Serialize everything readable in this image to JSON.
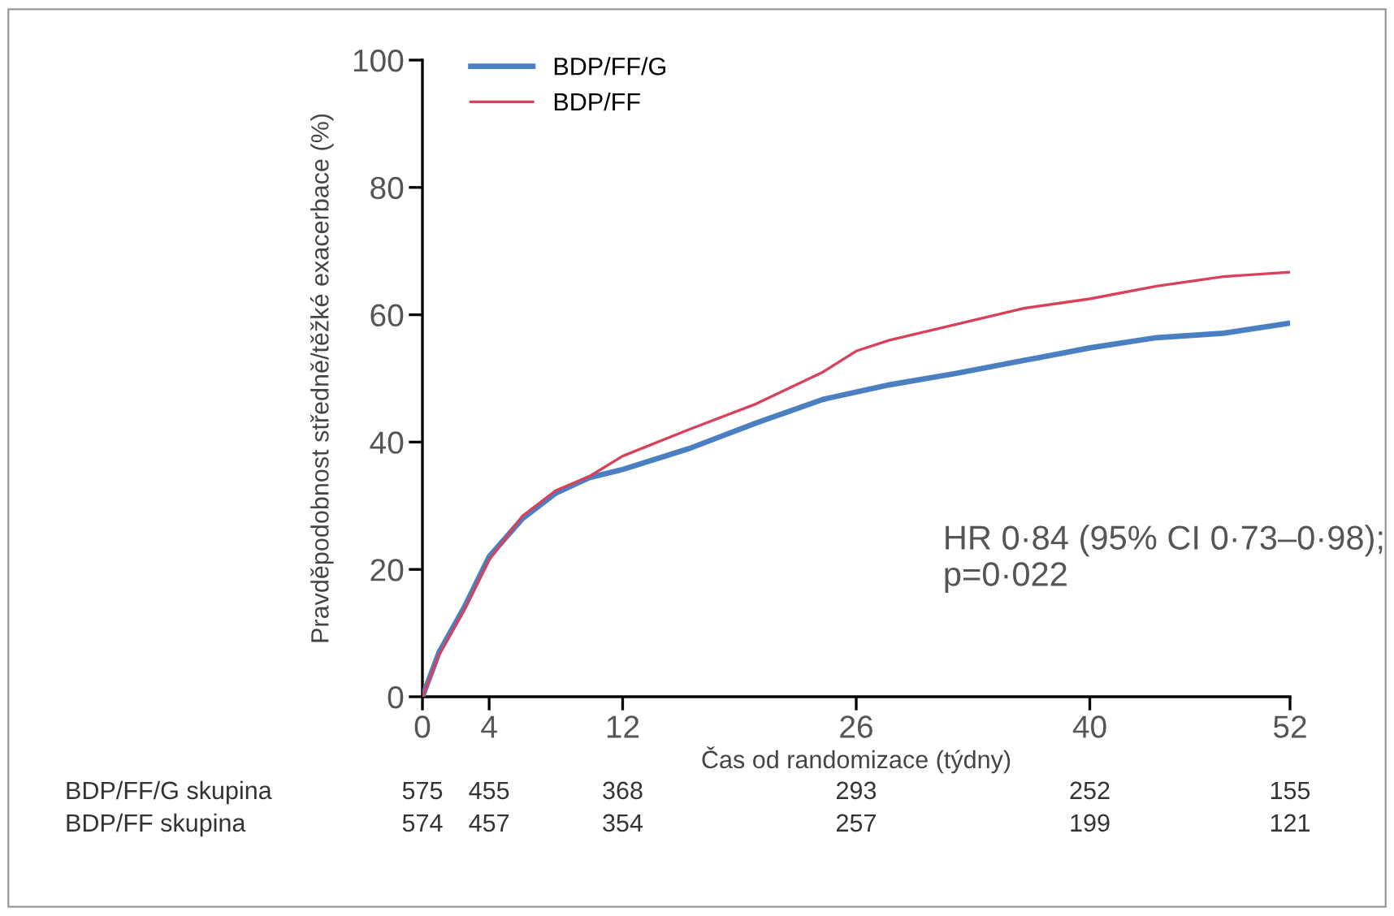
{
  "chart_data": {
    "type": "line",
    "xlabel": "Čas od randomizace (týdny)",
    "ylabel": "Pravděpodobnost středně/těžké exacerbace (%)",
    "xlim": [
      0,
      52
    ],
    "xticks": [
      0,
      4,
      12,
      26,
      40,
      52
    ],
    "ylim": [
      0,
      100
    ],
    "yticks": [
      0,
      20,
      40,
      60,
      80,
      100
    ],
    "grid": false,
    "legend": "top left",
    "series": [
      {
        "name": "BDP/FF/G",
        "color": "#4a7fc1",
        "x": [
          0,
          1,
          2.5,
          4,
          6,
          8,
          10,
          12,
          16,
          20,
          24,
          28,
          32,
          36,
          40,
          44,
          48,
          52
        ],
        "values": [
          0,
          7,
          14,
          22,
          28,
          32,
          34.4,
          35.7,
          39,
          43,
          46.7,
          49,
          50.8,
          52.8,
          54.8,
          56.4,
          57.1,
          58.7
        ]
      },
      {
        "name": "BDP/FF",
        "color": "#d9415a",
        "x": [
          0,
          1,
          2.5,
          4,
          6,
          8,
          10,
          12,
          16,
          20,
          24,
          26,
          28,
          32,
          36,
          40,
          44,
          48,
          52
        ],
        "values": [
          0,
          6.6,
          13.6,
          21.5,
          28.4,
          32.4,
          34.6,
          37.8,
          42,
          46,
          51,
          54.3,
          56,
          58.5,
          61,
          62.5,
          64.5,
          66,
          66.7
        ]
      }
    ],
    "annotations": [
      {
        "text": "HR 0·84 (95% CI 0·73–0·98);\np=0·022"
      },
      "BDP/FF/G skupina",
      "575",
      "455",
      "368",
      "293",
      "252",
      "155",
      "BDP/FF skupina",
      "574",
      "457",
      "354",
      "257",
      "199",
      "121"
    ]
  }
}
